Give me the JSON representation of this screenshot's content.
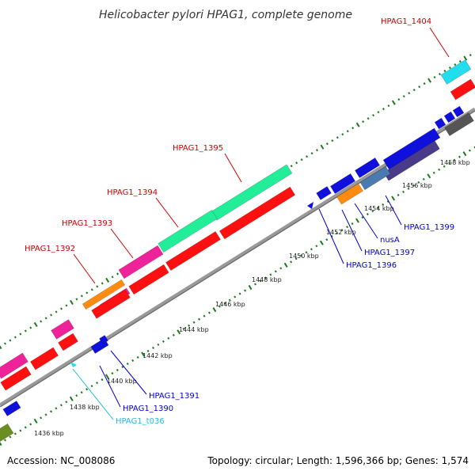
{
  "title": "Helicobacter pylori HPAG1, complete genome",
  "footer": {
    "accession": "Accession: NC_008086",
    "summary": "Topology: circular; Length: 1,596,366 bp; Genes: 1,574"
  },
  "colors": {
    "red": "#ff1010",
    "pink": "#ee2299",
    "green": "#22ee99",
    "orange": "#ff8c10",
    "blue": "#1010dd",
    "cyan": "#22ddee",
    "indigo": "#4a3a8a",
    "steel": "#4a7ab0",
    "olive": "#6b8e23",
    "gray": "#555555",
    "tickgreen": "#1a7a1a",
    "red_label": "#cc0000",
    "blue_label": "#0000cc",
    "cyan_label": "#22bbdd"
  },
  "scale_labels": [
    "1436 kbp",
    "1438 kbp",
    "1440 kbp",
    "1442 kbp",
    "1444 kbp",
    "1446 kbp",
    "1448 kbp",
    "1450 kbp",
    "1452 kbp",
    "1454 kbp",
    "1456 kbp",
    "1458 kbp"
  ],
  "labels": [
    {
      "id": "hpag1-1404",
      "text": "HPAG1_1404",
      "color": "red_label"
    },
    {
      "id": "hpag1-1395",
      "text": "HPAG1_1395",
      "color": "red_label"
    },
    {
      "id": "hpag1-1394",
      "text": "HPAG1_1394",
      "color": "red_label"
    },
    {
      "id": "hpag1-1393",
      "text": "HPAG1_1393",
      "color": "red_label"
    },
    {
      "id": "hpag1-1392",
      "text": "HPAG1_1392",
      "color": "red_label"
    },
    {
      "id": "hpag1-1399",
      "text": "HPAG1_1399",
      "color": "blue_label"
    },
    {
      "id": "nusa",
      "text": "nusA",
      "color": "blue_label"
    },
    {
      "id": "hpag1-1397",
      "text": "HPAG1_1397",
      "color": "blue_label"
    },
    {
      "id": "hpag1-1396",
      "text": "HPAG1_1396",
      "color": "blue_label"
    },
    {
      "id": "hpag1-1391",
      "text": "HPAG1_1391",
      "color": "blue_label"
    },
    {
      "id": "hpag1-1390",
      "text": "HPAG1_1390",
      "color": "blue_label"
    },
    {
      "id": "hpag1-t036",
      "text": "HPAG1_t036",
      "color": "cyan_label"
    }
  ]
}
